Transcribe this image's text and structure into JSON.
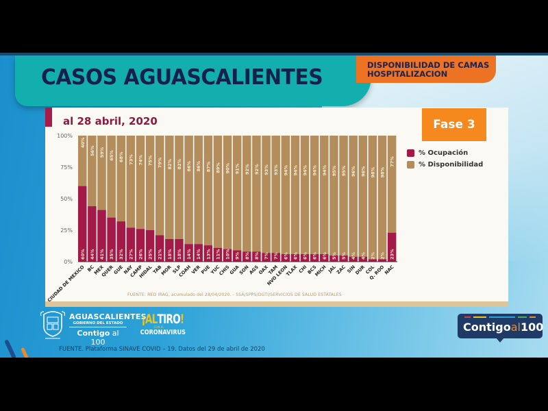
{
  "slide": {
    "title": "CASOS AGUASCALIENTES",
    "subtitle_line1": "DISPONIBILIDAD DE CAMAS",
    "subtitle_line2": "HOSPITALIZACION",
    "footer_source": "FUENTE. Plataforma SINAVE COVID – 19. Datos del 29 de abril de 2020",
    "logos": {
      "state_line1": "AGUASCALIENTES",
      "state_line2": "GOBIERNO DEL ESTADO",
      "state_line3_a": "Contigo",
      "state_line3_b": " al 100",
      "altiro_a": "¡AL",
      "altiro_b": "TIRO",
      "altiro_c": "!",
      "altiro_small": "CON EL",
      "altiro_bottom": "CORONAVIRUS",
      "badge_a": "Contigo",
      "badge_b": "al",
      "badge_c": "100"
    }
  },
  "colors": {
    "ocupacion": "#a31a49",
    "disponibilidad": "#b38d5c",
    "title_bar": "#13aeae",
    "subtitle_bar": "#ec7224",
    "fase": "#f5891d"
  },
  "chart_data": {
    "type": "bar",
    "stacked": true,
    "title": "al 28 abril, 2020",
    "phase_label": "Fase 3",
    "source": "FUENTE: RED IRAG, acumulado del 28/04/2020. - SSA/SPPS/DGTI/SERVICIOS DE SALUD ESTATALES",
    "xlabel": "",
    "ylabel": "",
    "ylim": [
      0,
      100
    ],
    "yticks": [
      "0%",
      "25%",
      "50%",
      "75%",
      "100%"
    ],
    "ytick_values": [
      0,
      25,
      50,
      75,
      100
    ],
    "legend_position": "right",
    "categories": [
      "CIUDAD DE MEXICO",
      "BC",
      "MEX",
      "QUER",
      "GUE",
      "NAY",
      "CAMP",
      "HIDAL",
      "TAB",
      "MOR",
      "SLP",
      "COAH",
      "VER",
      "PUE",
      "YUC",
      "CHIS",
      "GUA",
      "SON",
      "AGS",
      "OAX",
      "TAM",
      "NVO LEON",
      "TLAX",
      "CHI",
      "BCS",
      "MICH",
      "JAL",
      "ZAC",
      "SIN",
      "DUR",
      "COL",
      "Q. ROO",
      "NAC"
    ],
    "series": [
      {
        "name": "% Ocupación",
        "values": [
          60,
          44,
          41,
          35,
          32,
          27,
          26,
          25,
          21,
          18,
          18,
          14,
          14,
          13,
          11,
          10,
          9,
          8,
          8,
          7,
          7,
          6,
          6,
          6,
          6,
          6,
          5,
          5,
          4,
          4,
          2,
          2,
          23
        ]
      },
      {
        "name": "% Disponibilidad",
        "values": [
          40,
          56,
          59,
          65,
          68,
          73,
          74,
          75,
          79,
          82,
          82,
          86,
          86,
          87,
          89,
          90,
          91,
          92,
          92,
          93,
          93,
          94,
          94,
          94,
          94,
          94,
          95,
          95,
          96,
          96,
          98,
          98,
          77
        ]
      }
    ]
  }
}
